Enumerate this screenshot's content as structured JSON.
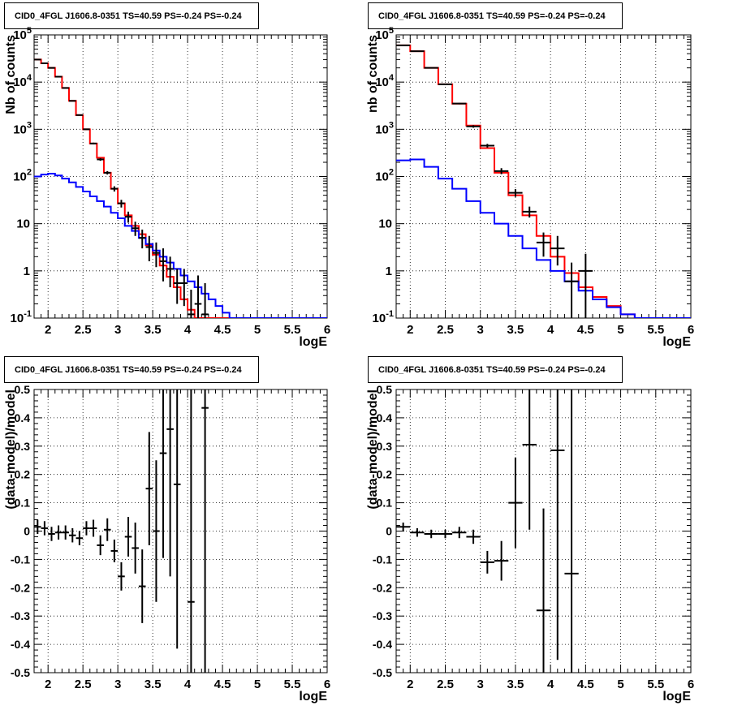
{
  "chart_data": [
    {
      "id": "tl",
      "type": "histogram",
      "title": "CID0_4FGL J1606.8-0351 TS=40.59 PS=-0.24 PS=-0.24",
      "xlabel": "logE",
      "ylabel": "Nb of counts",
      "xlim": [
        1.8,
        6
      ],
      "ylim": [
        0.1,
        100000
      ],
      "log_y": true,
      "grid": true,
      "x_ticks": [
        "2",
        "2.5",
        "3",
        "3.5",
        "4",
        "4.5",
        "5",
        "5.5",
        "6"
      ],
      "y_ticks": [
        "10^-1",
        "1",
        "10",
        "10^2",
        "10^3",
        "10^4",
        "10^5"
      ],
      "bin_width": 0.1,
      "series": [
        {
          "kind": "step",
          "color": "#ff0000",
          "x": [
            1.8,
            1.9,
            2.0,
            2.1,
            2.2,
            2.3,
            2.4,
            2.5,
            2.6,
            2.7,
            2.8,
            2.9,
            3.0,
            3.1,
            3.2,
            3.3,
            3.4,
            3.5,
            3.6,
            3.7,
            3.8,
            3.9,
            4.0,
            4.1,
            4.2,
            4.3,
            4.4,
            4.5,
            4.6,
            4.7,
            4.8,
            4.9,
            5.0,
            5.1,
            5.2,
            5.3,
            5.4,
            5.5,
            5.6,
            5.7,
            5.8,
            5.9
          ],
          "y": [
            30000,
            25000,
            20000,
            13000,
            7500,
            4000,
            2000,
            1000,
            500,
            250,
            120,
            55,
            27,
            15,
            9,
            6,
            3.5,
            2.2,
            1.3,
            0.75,
            0.45,
            0.25,
            0.15,
            0.1,
            0.1,
            0.1,
            0.1,
            0.1,
            0.1,
            0.1,
            0.1,
            0.1,
            0.1,
            0.1,
            0.1,
            0.1,
            0.1,
            0.1,
            0.1,
            0.1,
            0.1,
            0.1
          ]
        },
        {
          "kind": "step",
          "color": "#0000ff",
          "x": [
            1.8,
            1.9,
            2.0,
            2.1,
            2.2,
            2.3,
            2.4,
            2.5,
            2.6,
            2.7,
            2.8,
            2.9,
            3.0,
            3.1,
            3.2,
            3.3,
            3.4,
            3.5,
            3.6,
            3.7,
            3.8,
            3.9,
            4.0,
            4.1,
            4.2,
            4.3,
            4.4,
            4.5,
            4.6,
            4.7,
            4.8,
            4.9,
            5.0,
            5.1,
            5.2,
            5.3,
            5.4,
            5.5,
            5.6,
            5.7,
            5.8,
            5.9
          ],
          "y": [
            100,
            110,
            115,
            105,
            90,
            75,
            60,
            48,
            38,
            30,
            23,
            17,
            13,
            9,
            7,
            5,
            3.7,
            2.7,
            2.0,
            1.5,
            1.1,
            0.8,
            0.6,
            0.45,
            0.33,
            0.25,
            0.18,
            0.13,
            0.1,
            0.1,
            0.1,
            0.1,
            0.1,
            0.1,
            0.1,
            0.1,
            0.1,
            0.1,
            0.1,
            0.1,
            0.1,
            0.1
          ]
        },
        {
          "kind": "errorbar",
          "color": "#000000",
          "points": [
            {
              "x": 1.85,
              "y": 30000,
              "lo": 29800,
              "hi": 30200
            },
            {
              "x": 1.95,
              "y": 25000,
              "lo": 24800,
              "hi": 25200
            },
            {
              "x": 2.05,
              "y": 20000,
              "lo": 19800,
              "hi": 20200
            },
            {
              "x": 2.15,
              "y": 13000,
              "lo": 12800,
              "hi": 13200
            },
            {
              "x": 2.25,
              "y": 7500,
              "lo": 7350,
              "hi": 7650
            },
            {
              "x": 2.35,
              "y": 4000,
              "lo": 3900,
              "hi": 4100
            },
            {
              "x": 2.45,
              "y": 2000,
              "lo": 1950,
              "hi": 2050
            },
            {
              "x": 2.55,
              "y": 1000,
              "lo": 970,
              "hi": 1030
            },
            {
              "x": 2.65,
              "y": 500,
              "lo": 480,
              "hi": 520
            },
            {
              "x": 2.75,
              "y": 230,
              "lo": 215,
              "hi": 245
            },
            {
              "x": 2.85,
              "y": 120,
              "lo": 110,
              "hi": 130
            },
            {
              "x": 2.95,
              "y": 55,
              "lo": 48,
              "hi": 62
            },
            {
              "x": 3.05,
              "y": 27,
              "lo": 22,
              "hi": 32
            },
            {
              "x": 3.15,
              "y": 14,
              "lo": 10.5,
              "hi": 18
            },
            {
              "x": 3.25,
              "y": 8,
              "lo": 5.5,
              "hi": 11
            },
            {
              "x": 3.35,
              "y": 5,
              "lo": 3,
              "hi": 7.5
            },
            {
              "x": 3.45,
              "y": 3.2,
              "lo": 1.6,
              "hi": 5.5
            },
            {
              "x": 3.55,
              "y": 2.4,
              "lo": 1.2,
              "hi": 4
            },
            {
              "x": 3.65,
              "y": 1.6,
              "lo": 0.6,
              "hi": 3
            },
            {
              "x": 3.75,
              "y": 1.1,
              "lo": 0.45,
              "hi": 2
            },
            {
              "x": 3.85,
              "y": 0.55,
              "lo": 0.2,
              "hi": 1.1
            },
            {
              "x": 3.95,
              "y": 0.55,
              "lo": 0.18,
              "hi": 1.1
            },
            {
              "x": 4.05,
              "y": 0.12,
              "lo": 0.1,
              "hi": 0.4
            },
            {
              "x": 4.15,
              "y": 0.2,
              "lo": 0.1,
              "hi": 0.8
            },
            {
              "x": 4.25,
              "y": 0.12,
              "lo": 0.1,
              "hi": 0.55
            }
          ]
        }
      ]
    },
    {
      "id": "tr",
      "type": "histogram",
      "title": "CID0_4FGL J1606.8-0351 TS=40.59 PS=-0.24 PS=-0.24",
      "xlabel": "logE",
      "ylabel": "nb of counts",
      "xlim": [
        1.8,
        6
      ],
      "ylim": [
        0.1,
        100000
      ],
      "log_y": true,
      "grid": true,
      "x_ticks": [
        "2",
        "2.5",
        "3",
        "3.5",
        "4",
        "4.5",
        "5",
        "5.5",
        "6"
      ],
      "y_ticks": [
        "10^-1",
        "1",
        "10",
        "10^2",
        "10^3",
        "10^4",
        "10^5"
      ],
      "bin_width": 0.2,
      "series": [
        {
          "kind": "step",
          "color": "#ff0000",
          "x": [
            1.8,
            2.0,
            2.2,
            2.4,
            2.6,
            2.8,
            3.0,
            3.2,
            3.4,
            3.6,
            3.8,
            4.0,
            4.2,
            4.4,
            4.6,
            4.8,
            5.0,
            5.2,
            5.4,
            5.6,
            5.8
          ],
          "y": [
            60000,
            45000,
            20000,
            9000,
            3500,
            1200,
            400,
            120,
            40,
            15,
            5.5,
            2.0,
            0.9,
            0.45,
            0.28,
            0.18,
            0.12,
            0.1,
            0.1,
            0.1,
            0.1
          ]
        },
        {
          "kind": "step",
          "color": "#0000ff",
          "x": [
            1.8,
            2.0,
            2.2,
            2.4,
            2.6,
            2.8,
            3.0,
            3.2,
            3.4,
            3.6,
            3.8,
            4.0,
            4.2,
            4.4,
            4.6,
            4.8,
            5.0,
            5.2,
            5.4,
            5.6,
            5.8
          ],
          "y": [
            220,
            230,
            160,
            90,
            55,
            30,
            17,
            10,
            5.5,
            3.0,
            1.7,
            1.0,
            0.6,
            0.38,
            0.25,
            0.17,
            0.12,
            0.1,
            0.1,
            0.1,
            0.1
          ]
        },
        {
          "kind": "errorbar",
          "color": "#000000",
          "points": [
            {
              "x": 1.9,
              "y": 60000,
              "lo": 59600,
              "hi": 60400
            },
            {
              "x": 2.1,
              "y": 45000,
              "lo": 44600,
              "hi": 45400
            },
            {
              "x": 2.3,
              "y": 20000,
              "lo": 19700,
              "hi": 20300
            },
            {
              "x": 2.5,
              "y": 9000,
              "lo": 8800,
              "hi": 9200
            },
            {
              "x": 2.7,
              "y": 3500,
              "lo": 3380,
              "hi": 3620
            },
            {
              "x": 2.9,
              "y": 1150,
              "lo": 1080,
              "hi": 1220
            },
            {
              "x": 3.1,
              "y": 450,
              "lo": 410,
              "hi": 490
            },
            {
              "x": 3.3,
              "y": 130,
              "lo": 112,
              "hi": 150
            },
            {
              "x": 3.5,
              "y": 45,
              "lo": 37,
              "hi": 54
            },
            {
              "x": 3.7,
              "y": 18,
              "lo": 13.5,
              "hi": 23
            },
            {
              "x": 3.9,
              "y": 4,
              "lo": 2,
              "hi": 6.5
            },
            {
              "x": 4.1,
              "y": 3,
              "lo": 1.3,
              "hi": 5.5
            },
            {
              "x": 4.3,
              "y": 0.6,
              "lo": 0.1,
              "hi": 1.5
            },
            {
              "x": 4.5,
              "y": 1.0,
              "lo": 0.1,
              "hi": 2.3
            }
          ]
        }
      ]
    },
    {
      "id": "bl",
      "type": "scatter",
      "title": "CID0_4FGL J1606.8-0351 TS=40.59 PS=-0.24 PS=-0.24",
      "xlabel": "logE",
      "ylabel": "(data-model)/model",
      "xlim": [
        1.8,
        6
      ],
      "ylim": [
        -0.5,
        0.5
      ],
      "log_y": false,
      "grid": true,
      "x_ticks": [
        "2",
        "2.5",
        "3",
        "3.5",
        "4",
        "4.5",
        "5",
        "5.5",
        "6"
      ],
      "y_ticks": [
        "-0.5",
        "-0.4",
        "-0.3",
        "-0.2",
        "-0.1",
        "0",
        "0.1",
        "0.2",
        "0.3",
        "0.4",
        "0.5"
      ],
      "series": [
        {
          "kind": "errorbar",
          "color": "#000000",
          "xerr": 0.05,
          "points": [
            {
              "x": 1.85,
              "y": 0.015,
              "err": 0.025
            },
            {
              "x": 1.95,
              "y": 0.01,
              "err": 0.025
            },
            {
              "x": 2.05,
              "y": -0.01,
              "err": 0.025
            },
            {
              "x": 2.15,
              "y": -0.005,
              "err": 0.025
            },
            {
              "x": 2.25,
              "y": -0.005,
              "err": 0.025
            },
            {
              "x": 2.35,
              "y": -0.015,
              "err": 0.025
            },
            {
              "x": 2.45,
              "y": -0.025,
              "err": 0.025
            },
            {
              "x": 2.55,
              "y": 0.01,
              "err": 0.025
            },
            {
              "x": 2.65,
              "y": 0.01,
              "err": 0.03
            },
            {
              "x": 2.75,
              "y": -0.05,
              "err": 0.035
            },
            {
              "x": 2.85,
              "y": 0.005,
              "err": 0.04
            },
            {
              "x": 2.95,
              "y": -0.07,
              "err": 0.04
            },
            {
              "x": 3.05,
              "y": -0.16,
              "err": 0.05
            },
            {
              "x": 3.15,
              "y": -0.02,
              "err": 0.07
            },
            {
              "x": 3.25,
              "y": -0.06,
              "err": 0.09
            },
            {
              "x": 3.35,
              "y": -0.195,
              "err": 0.13
            },
            {
              "x": 3.45,
              "y": 0.15,
              "err": 0.2
            },
            {
              "x": 3.55,
              "y": 0.0,
              "err": 0.25
            },
            {
              "x": 3.65,
              "y": 0.275,
              "err": 0.37
            },
            {
              "x": 3.75,
              "y": 0.36,
              "err": 0.52
            },
            {
              "x": 3.85,
              "y": 0.165,
              "err": 0.58
            },
            {
              "x": 4.05,
              "y": -0.25,
              "err": 1.0
            },
            {
              "x": 4.25,
              "y": 0.435,
              "err": 1.0
            }
          ]
        }
      ]
    },
    {
      "id": "br",
      "type": "scatter",
      "title": "CID0_4FGL J1606.8-0351 TS=40.59 PS=-0.24 PS=-0.24",
      "xlabel": "logE",
      "ylabel": "(data-model)/model",
      "xlim": [
        1.8,
        6
      ],
      "ylim": [
        -0.5,
        0.5
      ],
      "log_y": false,
      "grid": true,
      "x_ticks": [
        "2",
        "2.5",
        "3",
        "3.5",
        "4",
        "4.5",
        "5",
        "5.5",
        "6"
      ],
      "y_ticks": [
        "-0.5",
        "-0.4",
        "-0.3",
        "-0.2",
        "-0.1",
        "0",
        "0.1",
        "0.2",
        "0.3",
        "0.4",
        "0.5"
      ],
      "series": [
        {
          "kind": "errorbar",
          "color": "#000000",
          "xerr": 0.1,
          "points": [
            {
              "x": 1.9,
              "y": 0.015,
              "err": 0.015
            },
            {
              "x": 2.1,
              "y": -0.005,
              "err": 0.015
            },
            {
              "x": 2.3,
              "y": -0.01,
              "err": 0.015
            },
            {
              "x": 2.5,
              "y": -0.01,
              "err": 0.015
            },
            {
              "x": 2.7,
              "y": -0.005,
              "err": 0.02
            },
            {
              "x": 2.9,
              "y": -0.02,
              "err": 0.025
            },
            {
              "x": 3.1,
              "y": -0.11,
              "err": 0.04
            },
            {
              "x": 3.3,
              "y": -0.105,
              "err": 0.07
            },
            {
              "x": 3.5,
              "y": 0.1,
              "err": 0.16
            },
            {
              "x": 3.7,
              "y": 0.305,
              "err": 0.3
            },
            {
              "x": 3.9,
              "y": -0.28,
              "err": 0.36
            },
            {
              "x": 4.1,
              "y": 0.285,
              "err": 0.74
            },
            {
              "x": 4.3,
              "y": -0.15,
              "err": 1.0
            }
          ]
        }
      ]
    }
  ]
}
